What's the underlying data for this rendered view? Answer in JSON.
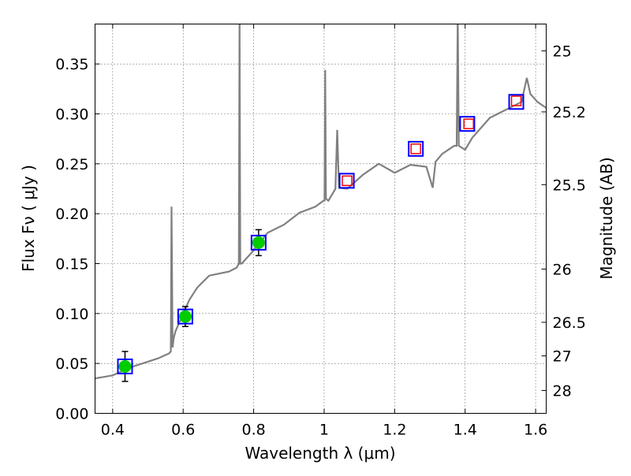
{
  "chart_data": {
    "type": "line",
    "xlabel": "Wavelength  λ (μm)",
    "ylabel": "Flux  Fν  ( μJy )",
    "y2label": "Magnitude (AB)",
    "xlim": [
      0.35,
      1.63
    ],
    "ylim": [
      0.0,
      0.39
    ],
    "grid": true,
    "x_ticks": [
      0.4,
      0.6,
      0.8,
      1.0,
      1.2,
      1.4,
      1.6
    ],
    "x_tick_labels": [
      "0.4",
      "0.6",
      "0.8",
      "1",
      "1.2",
      "1.4",
      "1.6"
    ],
    "y_ticks": [
      0.0,
      0.05,
      0.1,
      0.15,
      0.2,
      0.25,
      0.3,
      0.35
    ],
    "y_tick_labels": [
      "0.00",
      "0.05",
      "0.10",
      "0.15",
      "0.20",
      "0.25",
      "0.30",
      "0.35"
    ],
    "y2_ticks": [
      25,
      25.2,
      25.5,
      26,
      26.5,
      27,
      28
    ],
    "y2_tick_labels": [
      "25",
      "25.2",
      "25.5",
      "26",
      "26.5",
      "27",
      "28"
    ],
    "colors": {
      "spectrum": "#808080",
      "photometry": "#00cc00",
      "model_blue": "#0000ff",
      "model_red": "#ff0000"
    },
    "series": [
      {
        "name": "spectrum",
        "kind": "line",
        "x": [
          0.35,
          0.4,
          0.45,
          0.528,
          0.56,
          0.565,
          0.567,
          0.57,
          0.573,
          0.578,
          0.6,
          0.618,
          0.64,
          0.674,
          0.73,
          0.752,
          0.758,
          0.76,
          0.762,
          0.766,
          0.797,
          0.84,
          0.886,
          0.93,
          0.975,
          0.998,
          1.001,
          1.003,
          1.005,
          1.012,
          1.032,
          1.037,
          1.042,
          1.066,
          1.11,
          1.155,
          1.2,
          1.245,
          1.29,
          1.308,
          1.316,
          1.335,
          1.369,
          1.376,
          1.379,
          1.382,
          1.4,
          1.42,
          1.47,
          1.515,
          1.56,
          1.575,
          1.585,
          1.605,
          1.63
        ],
        "y": [
          0.035,
          0.038,
          0.046,
          0.055,
          0.06,
          0.062,
          0.207,
          0.066,
          0.075,
          0.082,
          0.1,
          0.114,
          0.126,
          0.138,
          0.142,
          0.146,
          0.15,
          0.4,
          0.15,
          0.15,
          0.162,
          0.181,
          0.189,
          0.201,
          0.207,
          0.213,
          0.213,
          0.344,
          0.215,
          0.213,
          0.225,
          0.284,
          0.226,
          0.225,
          0.239,
          0.25,
          0.241,
          0.249,
          0.247,
          0.226,
          0.252,
          0.26,
          0.268,
          0.268,
          0.4,
          0.268,
          0.264,
          0.276,
          0.296,
          0.304,
          0.312,
          0.336,
          0.32,
          0.312,
          0.306
        ]
      },
      {
        "name": "photometry",
        "kind": "errorbar",
        "x": [
          0.435,
          0.606,
          0.814
        ],
        "y": [
          0.047,
          0.097,
          0.171
        ],
        "yerr": [
          0.015,
          0.01,
          0.013
        ]
      },
      {
        "name": "model_blue",
        "kind": "square",
        "x": [
          0.435,
          0.606,
          0.814,
          1.064,
          1.26,
          1.406,
          1.545
        ],
        "y": [
          0.047,
          0.097,
          0.171,
          0.233,
          0.265,
          0.29,
          0.312
        ]
      },
      {
        "name": "model_red",
        "kind": "square",
        "x": [
          1.065,
          1.26,
          1.41,
          1.545
        ],
        "y": [
          0.233,
          0.265,
          0.29,
          0.313
        ]
      }
    ]
  }
}
